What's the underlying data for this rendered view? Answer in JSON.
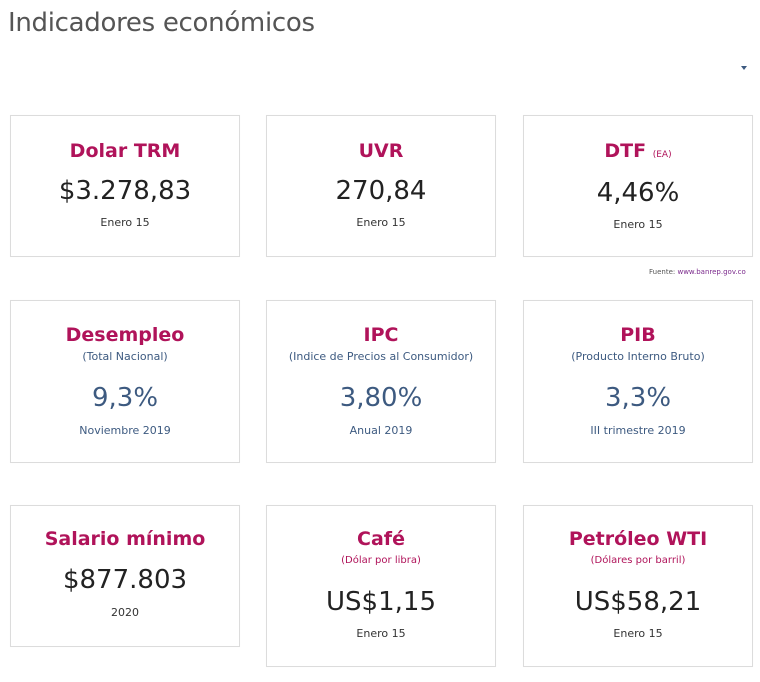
{
  "page": {
    "title": "Indicadores económicos"
  },
  "colors": {
    "accent_magenta": "#b0135a",
    "accent_blue": "#3d5a80",
    "text_dark": "#222222",
    "card_border": "#dcdcdc"
  },
  "source": {
    "label": "Fuente:",
    "link": "www.banrep.gov.co"
  },
  "cards": {
    "dolar": {
      "title": "Dolar TRM",
      "value": "$3.278,83",
      "date": "Enero 15"
    },
    "uvr": {
      "title": "UVR",
      "value": "270,84",
      "date": "Enero 15"
    },
    "dtf": {
      "title": "DTF",
      "suffix": "(EA)",
      "value": "4,46%",
      "date": "Enero 15"
    },
    "desempleo": {
      "title": "Desempleo",
      "subtitle": "(Total Nacional)",
      "value": "9,3%",
      "date": "Noviembre 2019"
    },
    "ipc": {
      "title": "IPC",
      "subtitle": "(Indice de Precios al Consumidor)",
      "value": "3,80%",
      "date": "Anual 2019"
    },
    "pib": {
      "title": "PIB",
      "subtitle": "(Producto Interno Bruto)",
      "value": "3,3%",
      "date": "III trimestre 2019"
    },
    "salario": {
      "title": "Salario mínimo",
      "value": "$877.803",
      "date": "2020"
    },
    "cafe": {
      "title": "Café",
      "subtitle": "(Dólar por libra)",
      "value": "US$1,15",
      "date": "Enero 15"
    },
    "petroleo": {
      "title": "Petróleo WTI",
      "subtitle": "(Dólares por barril)",
      "value": "US$58,21",
      "date": "Enero 15"
    }
  }
}
